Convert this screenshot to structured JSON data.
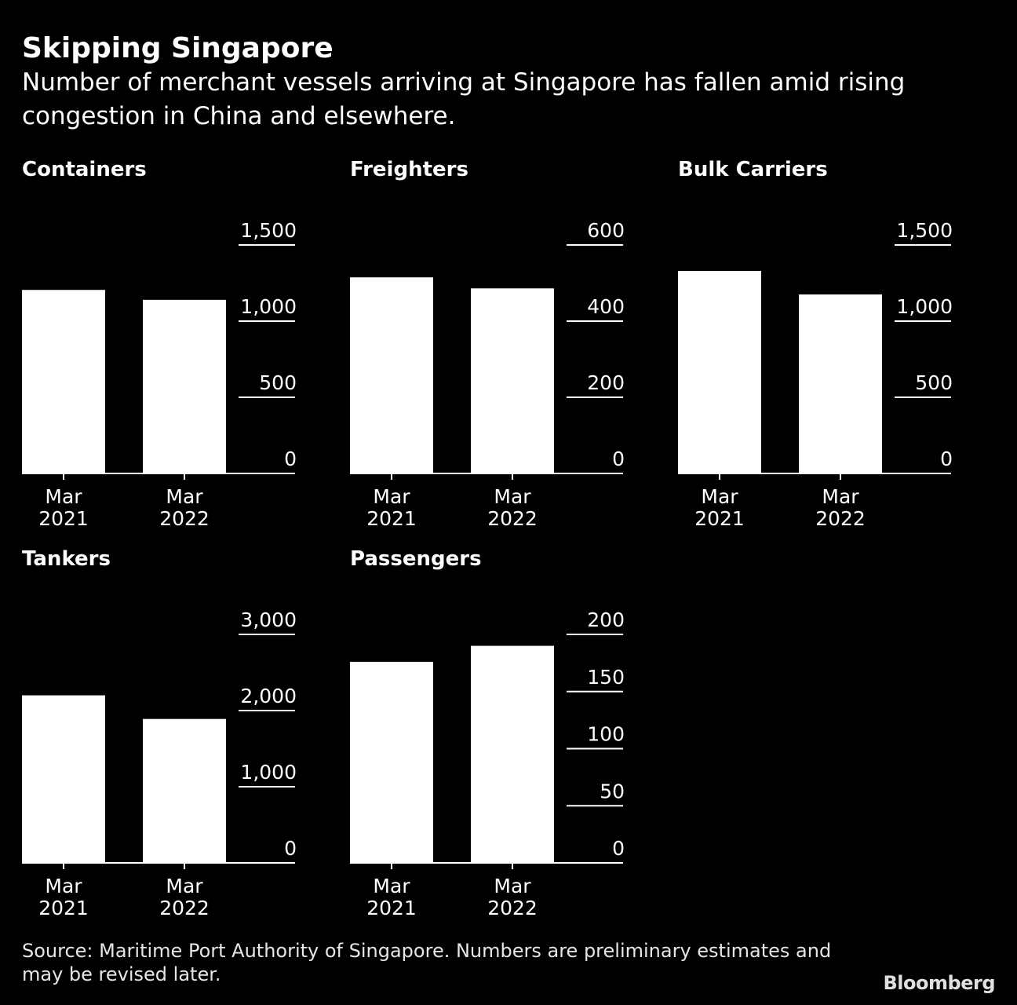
{
  "header": {
    "title": "Skipping Singapore",
    "subtitle": "Number of merchant vessels arriving at Singapore has fallen amid rising congestion in China and elsewhere."
  },
  "footer": {
    "source": "Source: Maritime Port Authority of Singapore. Numbers are preliminary estimates and may be revised later.",
    "brand": "Bloomberg"
  },
  "colors": {
    "background": "#000000",
    "bar": "#ffffff",
    "text": "#ffffff",
    "axis": "#ffffff"
  },
  "chart_data": [
    {
      "type": "bar",
      "title": "Containers",
      "categories": [
        [
          "Mar",
          "2021"
        ],
        [
          "Mar",
          "2022"
        ]
      ],
      "values": [
        1205,
        1140
      ],
      "ylim": [
        0,
        1500
      ],
      "yticks": [
        0,
        500,
        1000,
        1500
      ],
      "ytick_labels": [
        "0",
        "500",
        "1,000",
        "1,500"
      ],
      "grid": true,
      "y_axis_side": "right"
    },
    {
      "type": "bar",
      "title": "Freighters",
      "categories": [
        [
          "Mar",
          "2021"
        ],
        [
          "Mar",
          "2022"
        ]
      ],
      "values": [
        515,
        486
      ],
      "ylim": [
        0,
        600
      ],
      "yticks": [
        0,
        200,
        400,
        600
      ],
      "ytick_labels": [
        "0",
        "200",
        "400",
        "600"
      ],
      "grid": true,
      "y_axis_side": "right"
    },
    {
      "type": "bar",
      "title": "Bulk Carriers",
      "categories": [
        [
          "Mar",
          "2021"
        ],
        [
          "Mar",
          "2022"
        ]
      ],
      "values": [
        1330,
        1175
      ],
      "ylim": [
        0,
        1500
      ],
      "yticks": [
        0,
        500,
        1000,
        1500
      ],
      "ytick_labels": [
        "0",
        "500",
        "1,000",
        "1,500"
      ],
      "grid": true,
      "y_axis_side": "right"
    },
    {
      "type": "bar",
      "title": "Tankers",
      "categories": [
        [
          "Mar",
          "2021"
        ],
        [
          "Mar",
          "2022"
        ]
      ],
      "values": [
        2200,
        1890
      ],
      "ylim": [
        0,
        3000
      ],
      "yticks": [
        0,
        1000,
        2000,
        3000
      ],
      "ytick_labels": [
        "0",
        "1,000",
        "2,000",
        "3,000"
      ],
      "grid": true,
      "y_axis_side": "right"
    },
    {
      "type": "bar",
      "title": "Passengers",
      "categories": [
        [
          "Mar",
          "2021"
        ],
        [
          "Mar",
          "2022"
        ]
      ],
      "values": [
        176,
        190
      ],
      "ylim": [
        0,
        200
      ],
      "yticks": [
        0,
        50,
        100,
        150,
        200
      ],
      "ytick_labels": [
        "0",
        "50",
        "100",
        "150",
        "200"
      ],
      "grid": true,
      "y_axis_side": "right"
    }
  ]
}
